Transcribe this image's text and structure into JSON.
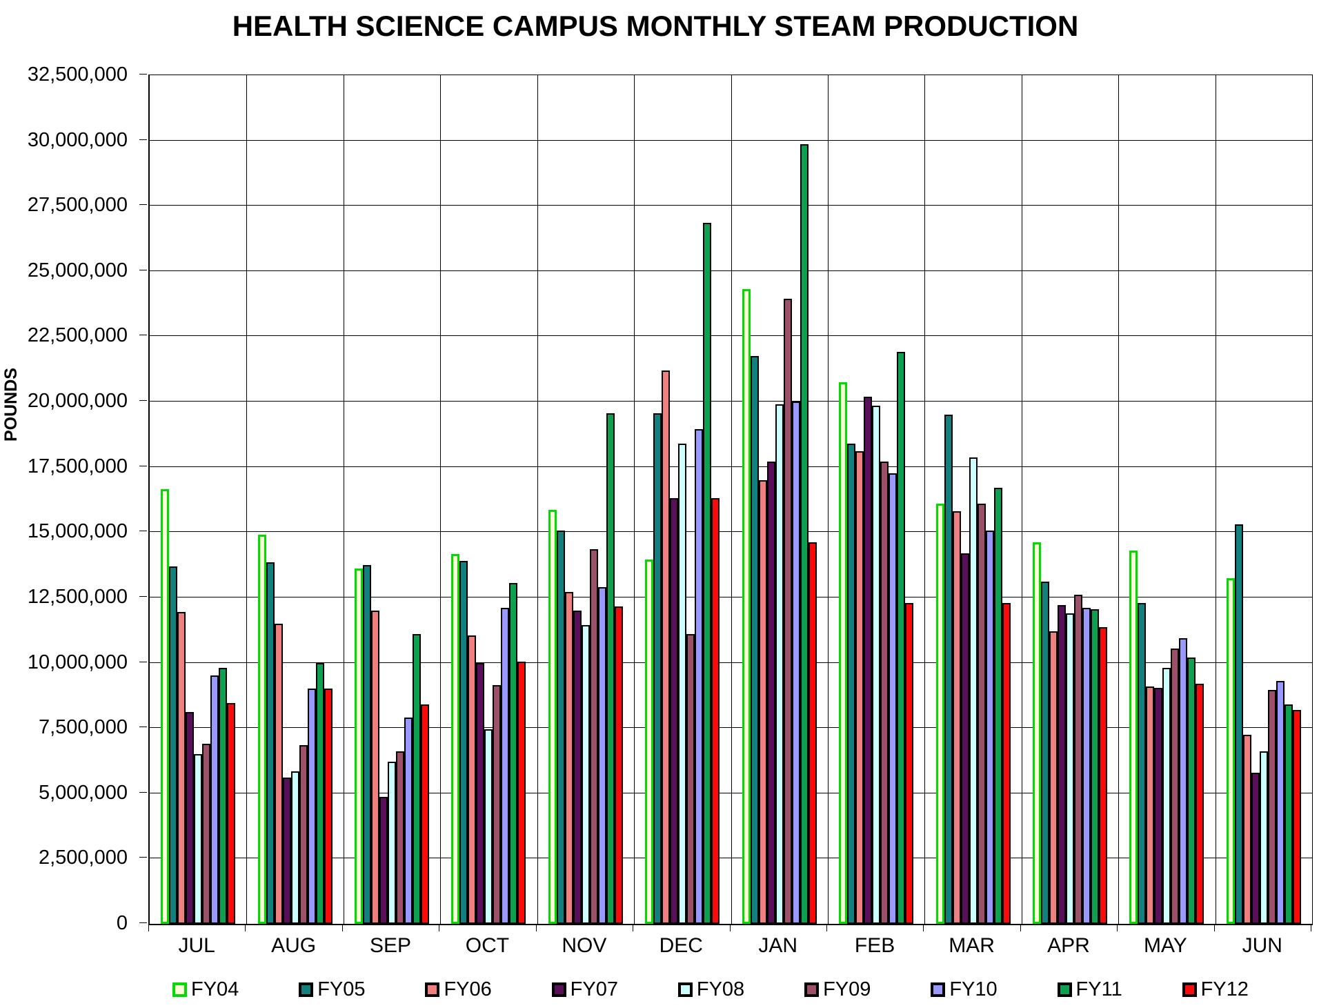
{
  "title": "HEALTH SCIENCE CAMPUS MONTHLY STEAM PRODUCTION",
  "chart_data": {
    "type": "bar",
    "title": "HEALTH SCIENCE CAMPUS MONTHLY STEAM PRODUCTION",
    "xlabel": "",
    "ylabel": "POUNDS",
    "ylim": [
      0,
      32500000
    ],
    "ytick_step": 2500000,
    "ytick_labels": [
      "0",
      "2,500,000",
      "5,000,000",
      "7,500,000",
      "10,000,000",
      "12,500,000",
      "15,000,000",
      "17,500,000",
      "20,000,000",
      "22,500,000",
      "25,000,000",
      "27,500,000",
      "30,000,000",
      "32,500,000"
    ],
    "grid": true,
    "legend_position": "bottom",
    "categories": [
      "JUL",
      "AUG",
      "SEP",
      "OCT",
      "NOV",
      "DEC",
      "JAN",
      "FEB",
      "MAR",
      "APR",
      "MAY",
      "JUN"
    ],
    "series": [
      {
        "name": "FY04",
        "fill": "#FBFBD8",
        "border": "#00DC00",
        "values": [
          16650000,
          14900000,
          13600000,
          14150000,
          15850000,
          13950000,
          24300000,
          20750000,
          16100000,
          14600000,
          14300000,
          13250000
        ]
      },
      {
        "name": "FY05",
        "fill": "#138080",
        "border": "#000000",
        "values": [
          13700000,
          13850000,
          13750000,
          13900000,
          15050000,
          19550000,
          21750000,
          18400000,
          19500000,
          13100000,
          12300000,
          15300000
        ]
      },
      {
        "name": "FY06",
        "fill": "#F08080",
        "border": "#000000",
        "values": [
          11950000,
          11500000,
          12000000,
          11050000,
          12700000,
          21200000,
          17000000,
          18100000,
          15800000,
          11200000,
          9100000,
          7250000
        ]
      },
      {
        "name": "FY07",
        "fill": "#5A0F5A",
        "border": "#000000",
        "values": [
          8100000,
          5600000,
          4850000,
          10000000,
          12000000,
          16300000,
          17700000,
          20200000,
          14200000,
          12200000,
          9050000,
          5800000
        ]
      },
      {
        "name": "FY08",
        "fill": "#CCFFFF",
        "border": "#000000",
        "values": [
          6500000,
          5850000,
          6200000,
          7450000,
          11450000,
          18400000,
          19900000,
          19850000,
          17850000,
          11900000,
          9800000,
          6600000
        ]
      },
      {
        "name": "FY09",
        "fill": "#9C5168",
        "border": "#000000",
        "values": [
          6900000,
          6850000,
          6600000,
          9150000,
          14350000,
          11100000,
          23950000,
          17700000,
          16100000,
          12600000,
          10550000,
          8950000
        ]
      },
      {
        "name": "FY10",
        "fill": "#9999FF",
        "border": "#000000",
        "values": [
          9500000,
          9000000,
          7900000,
          12100000,
          12900000,
          18950000,
          20000000,
          17250000,
          15050000,
          12100000,
          10950000,
          9300000
        ]
      },
      {
        "name": "FY11",
        "fill": "#0DA050",
        "border": "#000000",
        "values": [
          9800000,
          10000000,
          11100000,
          13050000,
          19550000,
          26850000,
          29850000,
          21900000,
          16700000,
          12050000,
          10200000,
          8400000
        ]
      },
      {
        "name": "FY12",
        "fill": "#FB0A0A",
        "border": "#000000",
        "values": [
          8450000,
          9000000,
          8400000,
          10050000,
          12150000,
          16300000,
          14600000,
          12300000,
          12300000,
          11350000,
          9200000,
          8200000
        ]
      }
    ]
  }
}
